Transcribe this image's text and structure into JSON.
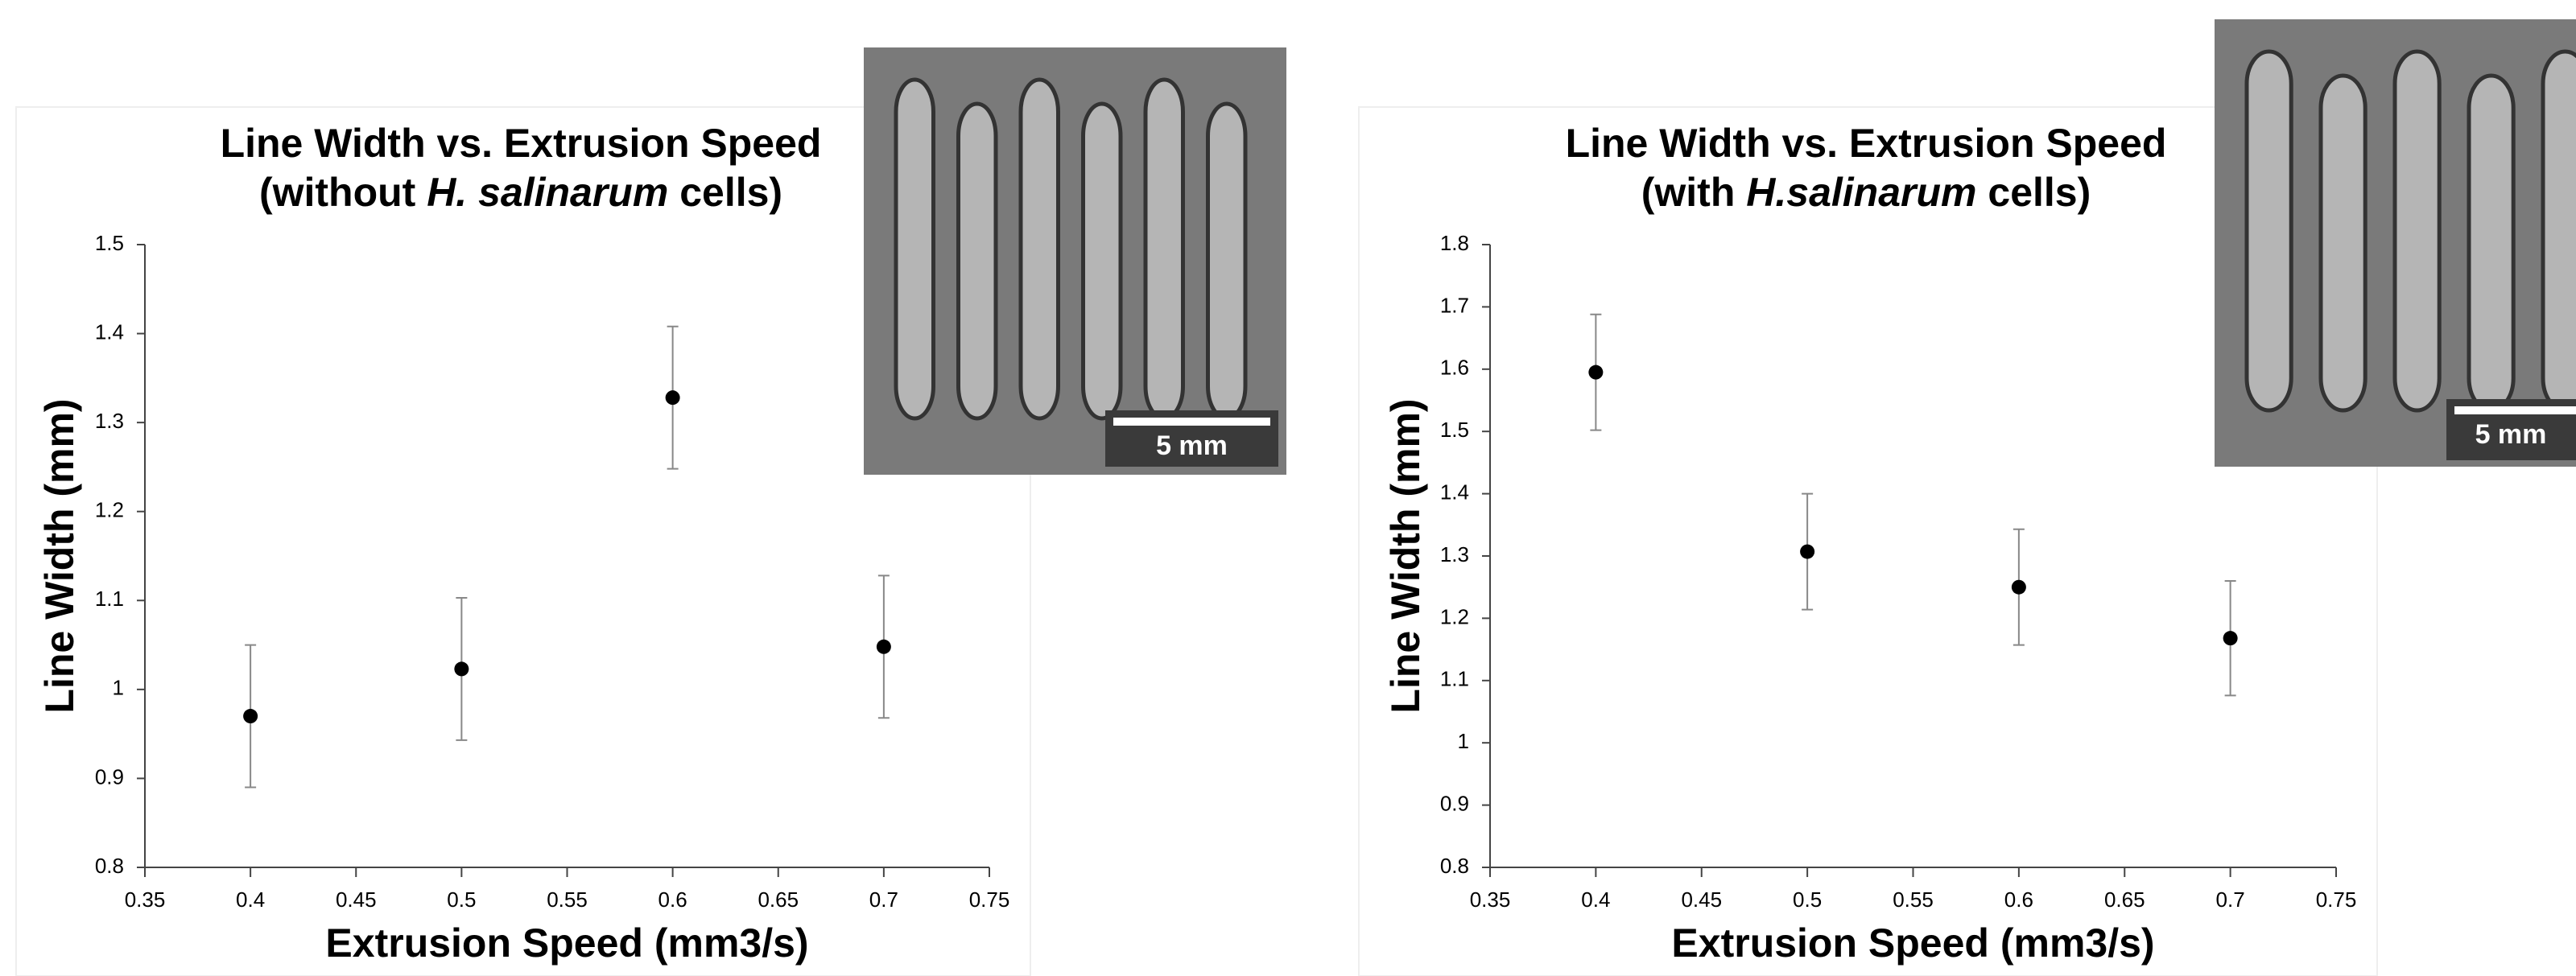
{
  "chart_data": [
    {
      "type": "scatter",
      "title": "Line Width vs. Extrusion Speed",
      "subtitle": [
        {
          "text": "(without "
        },
        {
          "text": "H. salinarum",
          "italic": true
        },
        {
          "text": " cells)"
        }
      ],
      "x_label": "Extrusion Speed (mm3/s)",
      "y_label": "Line Width (mm)",
      "x": [
        0.4,
        0.5,
        0.6,
        0.7
      ],
      "values": [
        0.97,
        1.023,
        1.328,
        1.048
      ],
      "errors": [
        0.08,
        0.08,
        0.08,
        0.08
      ],
      "color": "#000000",
      "xlim": [
        0.35,
        0.75
      ],
      "xticks": [
        0.35,
        0.4,
        0.45,
        0.5,
        0.55,
        0.6,
        0.65,
        0.7,
        0.75
      ],
      "ylim": [
        0.8,
        1.5
      ],
      "yticks": [
        0.8,
        0.9,
        1,
        1.1,
        1.2,
        1.3,
        1.4,
        1.5
      ],
      "inset_label": "5 mm"
    },
    {
      "type": "scatter",
      "title": "Line Width vs. Extrusion Speed",
      "subtitle": [
        {
          "text": "(with "
        },
        {
          "text": "H.salinarum",
          "italic": true
        },
        {
          "text": " cells)"
        }
      ],
      "x_label": "Extrusion Speed (mm3/s)",
      "y_label": "Line Width (mm)",
      "x": [
        0.4,
        0.5,
        0.6,
        0.7
      ],
      "values": [
        1.595,
        1.307,
        1.25,
        1.168
      ],
      "errors": [
        0.093,
        0.093,
        0.093,
        0.092
      ],
      "color": "#000000",
      "xlim": [
        0.35,
        0.75
      ],
      "xticks": [
        0.35,
        0.4,
        0.45,
        0.5,
        0.55,
        0.6,
        0.65,
        0.7,
        0.75
      ],
      "ylim": [
        0.8,
        1.8
      ],
      "yticks": [
        0.8,
        0.9,
        1,
        1.1,
        1.2,
        1.3,
        1.4,
        1.5,
        1.6,
        1.7,
        1.8
      ],
      "inset_label": "5 mm"
    }
  ]
}
